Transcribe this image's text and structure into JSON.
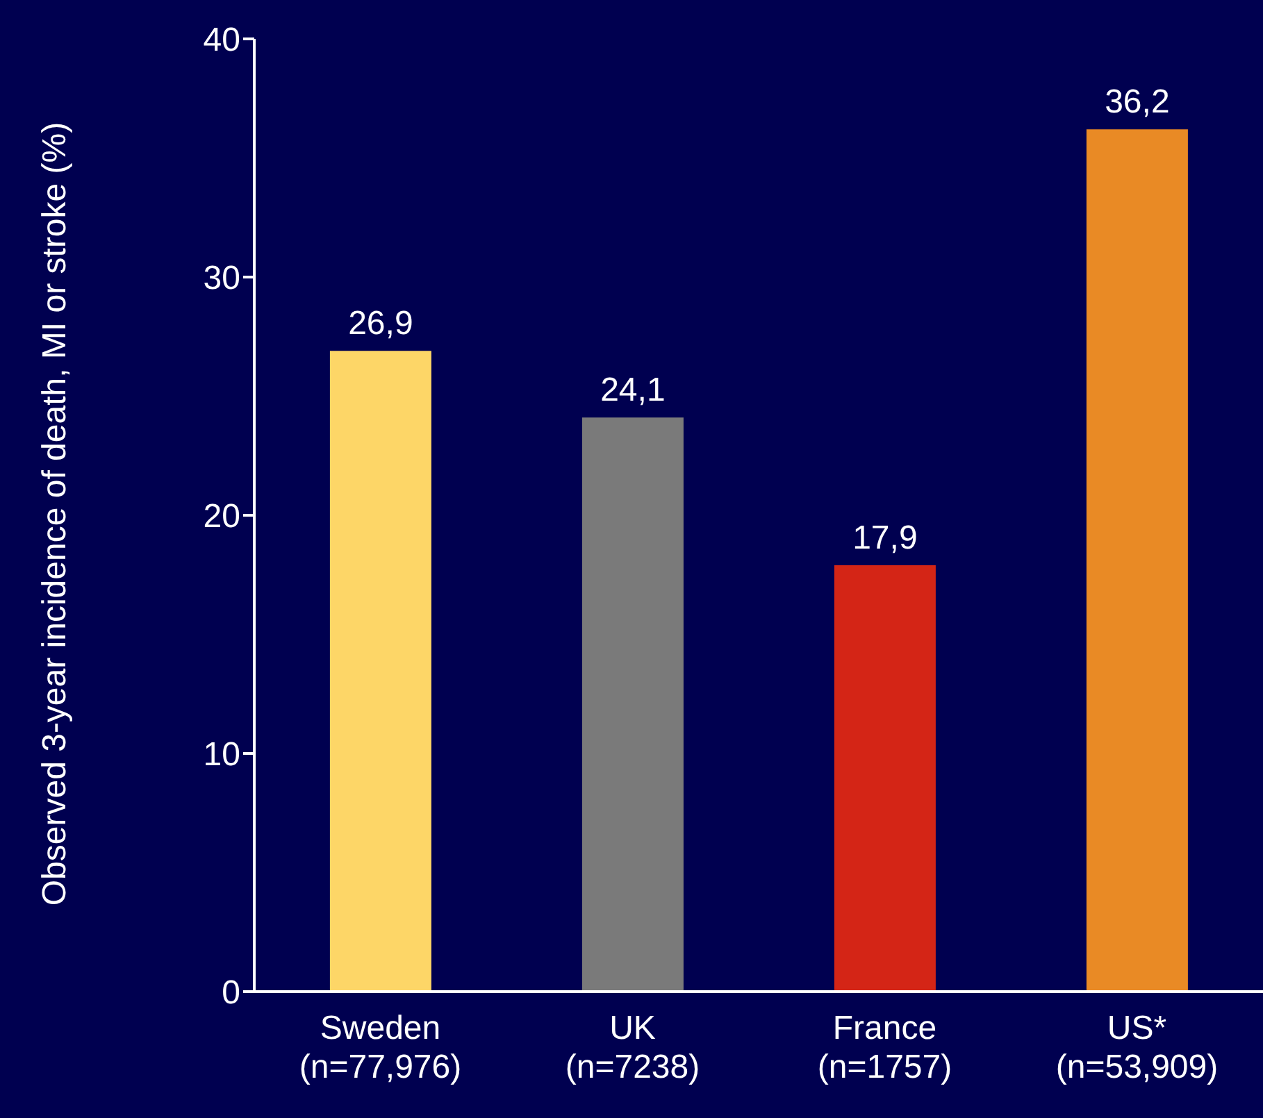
{
  "chart_data": {
    "type": "bar",
    "ylabel": "Observed 3-year incidence of death, MI or stroke (%)",
    "categories": [
      "Sweden (n=77,976)",
      "UK (n=7238)",
      "France (n=1757)",
      "US* (n=53,909)"
    ],
    "values": [
      26.9,
      24.1,
      17.9,
      36.2
    ],
    "colors": [
      "#fdd667",
      "#7a7a7a",
      "#d42516",
      "#e98a25"
    ],
    "value_labels": [
      "26,9",
      "24,1",
      "17,9",
      "36,2"
    ],
    "ylim": [
      0,
      40
    ],
    "yticks": [
      0,
      10,
      20,
      30,
      40
    ],
    "grid": false,
    "legend": false
  }
}
